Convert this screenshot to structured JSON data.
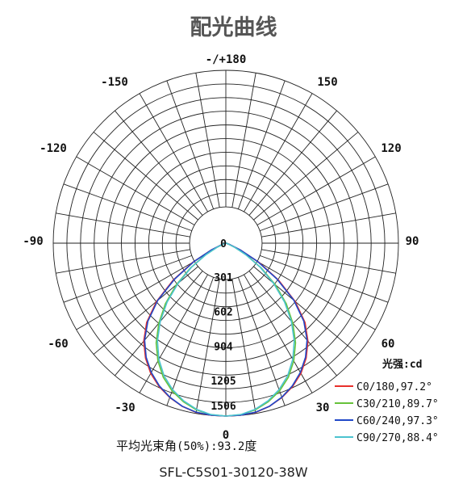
{
  "title": "配光曲线",
  "caption": "SFL-C5S01-30120-38W",
  "beam_angle": {
    "label_prefix": "平均光束角",
    "label_paren": "(50%)",
    "value": ":93.2",
    "label_suffix": "度"
  },
  "legend_title": "光强:cd",
  "chart_data": {
    "type": "polar",
    "title": "配光曲线",
    "angle_labels": [
      "-/+180",
      "150",
      "120",
      "90",
      "60",
      "30",
      "0",
      "-30",
      "-60",
      "-90",
      "-120",
      "-150"
    ],
    "radial_labels": [
      "0",
      "301",
      "602",
      "904",
      "1205",
      "1506"
    ],
    "radial_range": [
      0,
      1506
    ],
    "grid": true,
    "legend_position": "bottom-right",
    "angles": [
      0,
      5,
      10,
      15,
      20,
      25,
      30,
      35,
      40,
      45,
      50,
      55,
      60,
      65,
      70,
      75,
      80,
      85,
      90
    ],
    "series": [
      {
        "name": "C0/180,97.2°",
        "color": "#e8302c",
        "right": [
          1506,
          1504,
          1497,
          1472,
          1431,
          1378,
          1310,
          1222,
          1115,
          977,
          790,
          560,
          330,
          140,
          40,
          15,
          8,
          4,
          0
        ],
        "left": [
          1506,
          1504,
          1497,
          1472,
          1431,
          1378,
          1310,
          1222,
          1115,
          977,
          790,
          560,
          330,
          140,
          40,
          15,
          8,
          4,
          0
        ]
      },
      {
        "name": "C30/210,89.7°",
        "color": "#66c23a",
        "right": [
          1506,
          1500,
          1475,
          1430,
          1370,
          1290,
          1185,
          1060,
          910,
          745,
          565,
          380,
          210,
          90,
          30,
          12,
          6,
          3,
          0
        ],
        "left": [
          1506,
          1500,
          1475,
          1430,
          1370,
          1290,
          1185,
          1060,
          910,
          745,
          565,
          380,
          210,
          90,
          30,
          12,
          6,
          3,
          0
        ]
      },
      {
        "name": "C60/240,97.3°",
        "color": "#2048c8",
        "right": [
          1506,
          1503,
          1495,
          1470,
          1428,
          1372,
          1300,
          1212,
          1102,
          962,
          775,
          545,
          320,
          135,
          40,
          15,
          8,
          4,
          0
        ],
        "left": [
          1506,
          1503,
          1495,
          1470,
          1428,
          1372,
          1300,
          1212,
          1102,
          962,
          775,
          545,
          320,
          135,
          40,
          15,
          8,
          4,
          0
        ]
      },
      {
        "name": "C90/270,88.4°",
        "color": "#4cc3cf",
        "right": [
          1506,
          1498,
          1470,
          1422,
          1358,
          1275,
          1168,
          1040,
          890,
          725,
          545,
          365,
          200,
          85,
          28,
          12,
          6,
          3,
          0
        ],
        "left": [
          1506,
          1498,
          1470,
          1422,
          1358,
          1275,
          1168,
          1040,
          890,
          725,
          545,
          365,
          200,
          85,
          28,
          12,
          6,
          3,
          0
        ]
      }
    ]
  }
}
